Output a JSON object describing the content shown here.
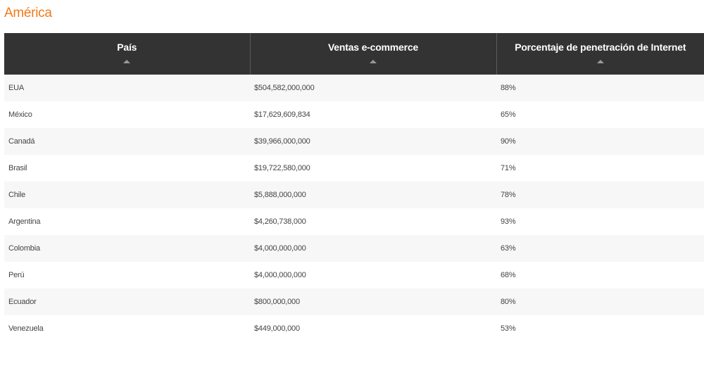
{
  "section": {
    "title": "América"
  },
  "colors": {
    "accent": "#f07a1a",
    "header_bg": "#333333"
  },
  "table": {
    "columns": [
      {
        "label": "País"
      },
      {
        "label": "Ventas e-commerce"
      },
      {
        "label": "Porcentaje de penetración de Internet"
      }
    ],
    "rows": [
      {
        "country": "EUA",
        "sales": "$504,582,000,000",
        "penetration": "88%"
      },
      {
        "country": "México",
        "sales": "$17,629,609,834",
        "penetration": "65%"
      },
      {
        "country": "Canadá",
        "sales": "$39,966,000,000",
        "penetration": "90%"
      },
      {
        "country": "Brasil",
        "sales": "$19,722,580,000",
        "penetration": "71%"
      },
      {
        "country": "Chile",
        "sales": "$5,888,000,000",
        "penetration": "78%"
      },
      {
        "country": "Argentina",
        "sales": "$4,260,738,000",
        "penetration": "93%"
      },
      {
        "country": "Colombia",
        "sales": "$4,000,000,000",
        "penetration": "63%"
      },
      {
        "country": "Perú",
        "sales": "$4,000,000,000",
        "penetration": "68%"
      },
      {
        "country": "Ecuador",
        "sales": "$800,000,000",
        "penetration": "80%"
      },
      {
        "country": "Venezuela",
        "sales": "$449,000,000",
        "penetration": "53%"
      }
    ]
  }
}
